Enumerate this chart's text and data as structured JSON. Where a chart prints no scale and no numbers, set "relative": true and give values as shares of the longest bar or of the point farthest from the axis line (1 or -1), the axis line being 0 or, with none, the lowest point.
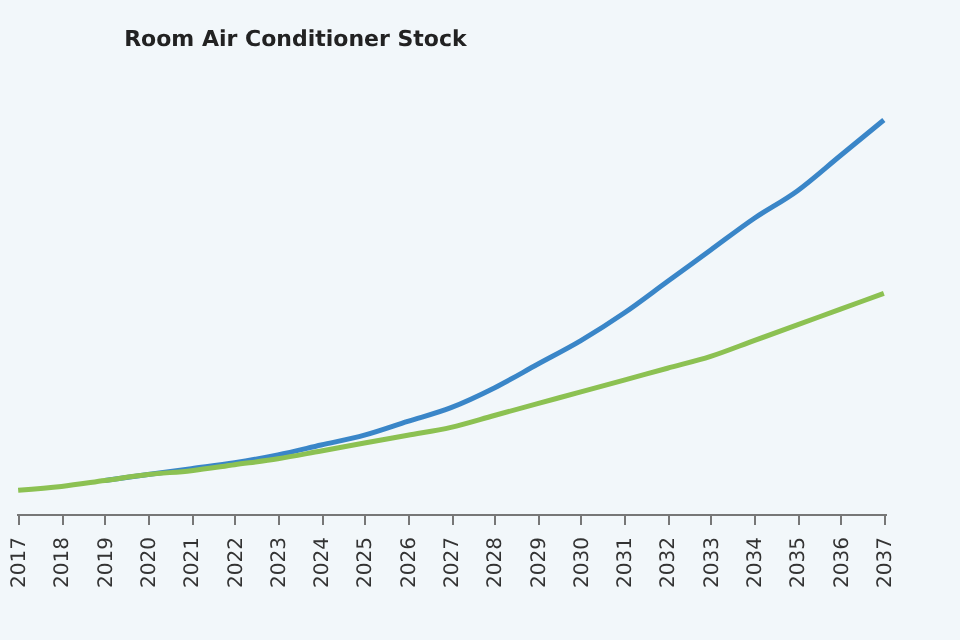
{
  "chart_data": {
    "type": "line",
    "title": "Room Air Conditioner Stock",
    "relative": true,
    "categories": [
      "2017",
      "2018",
      "2019",
      "2020",
      "2021",
      "2022",
      "2023",
      "2024",
      "2025",
      "2026",
      "2027",
      "2028",
      "2029",
      "2030",
      "2031",
      "2032",
      "2033",
      "2034",
      "2035",
      "2036",
      "2037"
    ],
    "series": [
      {
        "color": "#3a86c8",
        "values": [
          null,
          null,
          0.085,
          0.1,
          0.115,
          0.13,
          0.15,
          0.175,
          0.2,
          0.235,
          0.27,
          0.32,
          0.38,
          0.44,
          0.51,
          0.59,
          0.67,
          0.75,
          0.82,
          0.91,
          1
        ]
      },
      {
        "color": "#8cc152",
        "values": [
          0.06,
          0.07,
          0.085,
          0.1,
          0.11,
          0.125,
          0.14,
          0.16,
          0.18,
          0.2,
          0.22,
          0.25,
          0.28,
          0.31,
          0.34,
          0.37,
          0.4,
          0.44,
          0.48,
          0.52,
          0.56
        ]
      }
    ]
  }
}
